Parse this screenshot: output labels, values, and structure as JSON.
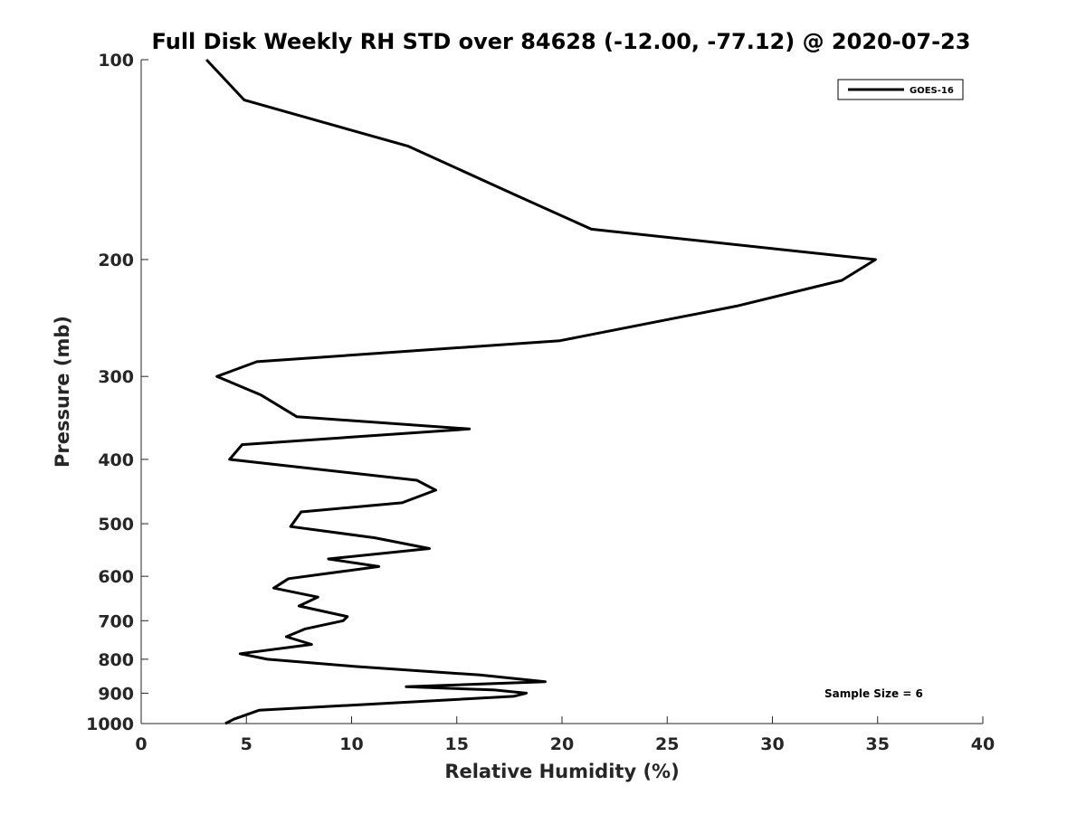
{
  "chart_data": {
    "type": "line",
    "title": "Full Disk Weekly RH STD over 84628 (-12.00, -77.12) @ 2020-07-23",
    "xlabel": "Relative Humidity (%)",
    "ylabel": "Pressure (mb)",
    "xlim": [
      0,
      40
    ],
    "ylim": [
      1000,
      100
    ],
    "y_scale": "log",
    "y_reversed": true,
    "x_ticks": [
      0,
      5,
      10,
      15,
      20,
      25,
      30,
      35,
      40
    ],
    "y_ticks": [
      100,
      200,
      300,
      400,
      500,
      600,
      700,
      800,
      900,
      1000
    ],
    "grid": false,
    "legend_position": "top-right",
    "series": [
      {
        "name": "GOES-16",
        "color": "#000000",
        "points": [
          [
            3.1,
            100
          ],
          [
            4.9,
            115
          ],
          [
            12.7,
            135
          ],
          [
            17.8,
            160
          ],
          [
            21.4,
            180
          ],
          [
            34.9,
            200
          ],
          [
            33.3,
            215
          ],
          [
            28.3,
            235
          ],
          [
            19.9,
            265
          ],
          [
            5.5,
            285
          ],
          [
            3.6,
            300
          ],
          [
            5.7,
            320
          ],
          [
            7.4,
            345
          ],
          [
            15.6,
            360
          ],
          [
            4.8,
            380
          ],
          [
            4.2,
            400
          ],
          [
            13.1,
            430
          ],
          [
            14.0,
            445
          ],
          [
            12.4,
            465
          ],
          [
            7.6,
            480
          ],
          [
            7.1,
            505
          ],
          [
            11.1,
            525
          ],
          [
            13.7,
            545
          ],
          [
            8.9,
            565
          ],
          [
            11.3,
            580
          ],
          [
            7.0,
            605
          ],
          [
            6.3,
            625
          ],
          [
            8.4,
            645
          ],
          [
            7.5,
            665
          ],
          [
            9.8,
            690
          ],
          [
            9.6,
            700
          ],
          [
            7.8,
            720
          ],
          [
            6.9,
            740
          ],
          [
            8.1,
            760
          ],
          [
            4.7,
            785
          ],
          [
            6.0,
            800
          ],
          [
            10.1,
            820
          ],
          [
            16.1,
            845
          ],
          [
            19.2,
            865
          ],
          [
            12.6,
            880
          ],
          [
            16.8,
            890
          ],
          [
            18.3,
            900
          ],
          [
            17.7,
            910
          ],
          [
            5.6,
            955
          ],
          [
            4.4,
            985
          ],
          [
            4.0,
            1000
          ]
        ]
      }
    ],
    "annotations": [
      "Sample Size = 6"
    ]
  }
}
